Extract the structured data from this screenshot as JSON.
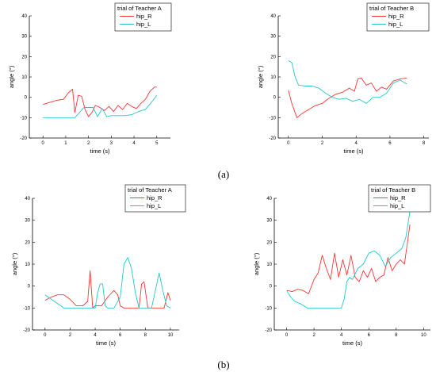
{
  "captions": [
    "(a)",
    "(b)"
  ],
  "chart_data": [
    {
      "type": "line",
      "legend_title": "trial of Teacher A",
      "xlabel": "time (s)",
      "ylabel": "angle (°)",
      "xlim": [
        -0.6,
        5.6
      ],
      "ylim": [
        -20,
        40
      ],
      "xticks": [
        0,
        1,
        2,
        3,
        4,
        5
      ],
      "yticks": [
        -20,
        -10,
        0,
        10,
        20,
        30,
        40
      ],
      "series": [
        {
          "name": "hip_R",
          "color": "#ff3333",
          "x": [
            0,
            0.3,
            0.6,
            0.9,
            1.1,
            1.3,
            1.4,
            1.55,
            1.7,
            1.85,
            2.0,
            2.15,
            2.3,
            2.5,
            2.7,
            2.9,
            3.1,
            3.3,
            3.5,
            3.7,
            3.9,
            4.1,
            4.3,
            4.5,
            4.7,
            4.9,
            5.0
          ],
          "y": [
            -3.5,
            -2.5,
            -1.5,
            -1,
            2,
            4,
            -7.5,
            1,
            0.5,
            -6,
            -9.5,
            -7.5,
            -4,
            -5,
            -6.5,
            -4.5,
            -7,
            -4,
            -6,
            -3,
            -4.5,
            -5.5,
            -3,
            -1,
            3,
            5,
            5
          ]
        },
        {
          "name": "hip_L",
          "color": "#22c8c8",
          "x": [
            0,
            0.5,
            1.0,
            1.4,
            1.6,
            1.8,
            2.0,
            2.2,
            2.4,
            2.6,
            2.8,
            3.0,
            3.3,
            3.6,
            3.9,
            4.2,
            4.5,
            4.8,
            5.0
          ],
          "y": [
            -10,
            -10,
            -10,
            -10,
            -7.5,
            -5,
            -5,
            -5,
            -9.5,
            -5.5,
            -9.5,
            -9,
            -9,
            -9,
            -8.5,
            -7,
            -6,
            -2,
            1
          ]
        }
      ]
    },
    {
      "type": "line",
      "legend_title": "trial of Teacher B",
      "xlabel": "time (s)",
      "ylabel": "angle (°)",
      "xlim": [
        -0.6,
        8.3
      ],
      "ylim": [
        -20,
        40
      ],
      "xticks": [
        0,
        2,
        4,
        6,
        8
      ],
      "yticks": [
        -20,
        -10,
        0,
        10,
        20,
        30,
        40
      ],
      "series": [
        {
          "name": "hip_R",
          "color": "#ff3333",
          "x": [
            0,
            0.2,
            0.5,
            0.8,
            1.2,
            1.6,
            2.0,
            2.4,
            2.8,
            3.2,
            3.6,
            3.9,
            4.1,
            4.3,
            4.6,
            4.9,
            5.2,
            5.5,
            5.8,
            6.2,
            6.6,
            7.0
          ],
          "y": [
            3.5,
            -3,
            -10,
            -8,
            -6,
            -4,
            -3,
            -0.5,
            1.5,
            2.5,
            4.5,
            3,
            9,
            9.5,
            6,
            7,
            3,
            5,
            4,
            8,
            9,
            9.5
          ]
        },
        {
          "name": "hip_L",
          "color": "#22c8c8",
          "x": [
            0,
            0.2,
            0.4,
            0.6,
            1.0,
            1.4,
            1.8,
            2.2,
            2.6,
            3.0,
            3.4,
            3.8,
            4.2,
            4.6,
            5.0,
            5.4,
            5.8,
            6.2,
            6.6,
            7.0
          ],
          "y": [
            18,
            17,
            10,
            6,
            5.5,
            5.5,
            4.5,
            2,
            0,
            -1,
            -0.5,
            -2,
            -1,
            -3,
            0,
            0,
            2,
            7,
            8.5,
            6.5
          ]
        }
      ]
    },
    {
      "type": "line",
      "legend_title": "trial of Teacher A",
      "xlabel": "time (s)",
      "ylabel": "angle (°)",
      "xlim": [
        -1,
        10.7
      ],
      "ylim": [
        -20,
        40
      ],
      "xticks": [
        0,
        2,
        4,
        6,
        8,
        10
      ],
      "yticks": [
        -20,
        -10,
        0,
        10,
        20,
        30,
        40
      ],
      "series": [
        {
          "name": "hip_R",
          "color": "#ff3333",
          "x": [
            0,
            0.5,
            1.0,
            1.5,
            2.0,
            2.5,
            3.0,
            3.4,
            3.6,
            3.8,
            4.0,
            4.5,
            5.0,
            5.5,
            5.8,
            6.0,
            6.3,
            7.0,
            7.5,
            7.7,
            7.9,
            8.2,
            8.5,
            9.0,
            9.5,
            9.8,
            10.0
          ],
          "y": [
            -6.5,
            -5,
            -4,
            -4,
            -6,
            -9,
            -9,
            -7,
            7,
            -10,
            -9,
            -9,
            -5,
            -2,
            -4,
            -9,
            -10,
            -10,
            -10,
            1,
            2,
            -10,
            -10,
            -10,
            -10,
            -3,
            -6.5
          ]
        },
        {
          "name": "hip_L",
          "color": "#22c8c8",
          "x": [
            0,
            0.5,
            1.0,
            1.5,
            2.0,
            3.0,
            4.0,
            4.2,
            4.4,
            4.6,
            4.8,
            5.0,
            5.5,
            6.0,
            6.3,
            6.6,
            6.9,
            7.2,
            7.5,
            8.0,
            8.5,
            8.8,
            9.1,
            9.4,
            9.7,
            10.0
          ],
          "y": [
            -4,
            -6,
            -8,
            -10,
            -10,
            -10,
            -10,
            -3,
            1,
            1,
            -9,
            -10,
            -10,
            -5,
            10,
            13,
            8,
            -3,
            -10,
            -10,
            -10,
            -2,
            6,
            -2,
            -9,
            -10
          ]
        }
      ]
    },
    {
      "type": "line",
      "legend_title": "trial of Teacher B",
      "xlabel": "time (s)",
      "ylabel": "angle (°)",
      "xlim": [
        -0.9,
        10.5
      ],
      "ylim": [
        -20,
        40
      ],
      "xticks": [
        0,
        2,
        4,
        6,
        8,
        10
      ],
      "yticks": [
        -20,
        -10,
        0,
        10,
        20,
        30,
        40
      ],
      "series": [
        {
          "name": "hip_R",
          "color": "#ff3333",
          "x": [
            0,
            0.4,
            0.8,
            1.2,
            1.6,
            2.0,
            2.3,
            2.6,
            2.9,
            3.2,
            3.5,
            3.8,
            4.1,
            4.4,
            4.7,
            5.0,
            5.3,
            5.6,
            5.9,
            6.2,
            6.5,
            6.8,
            7.1,
            7.4,
            7.7,
            8.0,
            8.3,
            8.6,
            9.0
          ],
          "y": [
            -2,
            -2.5,
            -1.5,
            -2,
            -3.5,
            3,
            6,
            14,
            8,
            3,
            15,
            4,
            12,
            5,
            14,
            4,
            2,
            7,
            4,
            8,
            2,
            4,
            5,
            13,
            7,
            10,
            12,
            10,
            28
          ]
        },
        {
          "name": "hip_L",
          "color": "#22c8c8",
          "x": [
            0,
            0.3,
            0.6,
            1.0,
            1.5,
            2.0,
            3.0,
            4.0,
            4.2,
            4.4,
            4.6,
            4.8,
            5.2,
            5.6,
            6.0,
            6.4,
            6.8,
            7.2,
            7.6,
            8.0,
            8.4,
            8.7,
            9.0
          ],
          "y": [
            -2,
            -5,
            -7,
            -8,
            -10,
            -10,
            -10,
            -10,
            -6,
            2,
            4,
            3,
            8,
            10,
            15,
            16,
            14,
            9,
            13,
            15,
            17,
            22,
            34
          ]
        }
      ]
    }
  ]
}
